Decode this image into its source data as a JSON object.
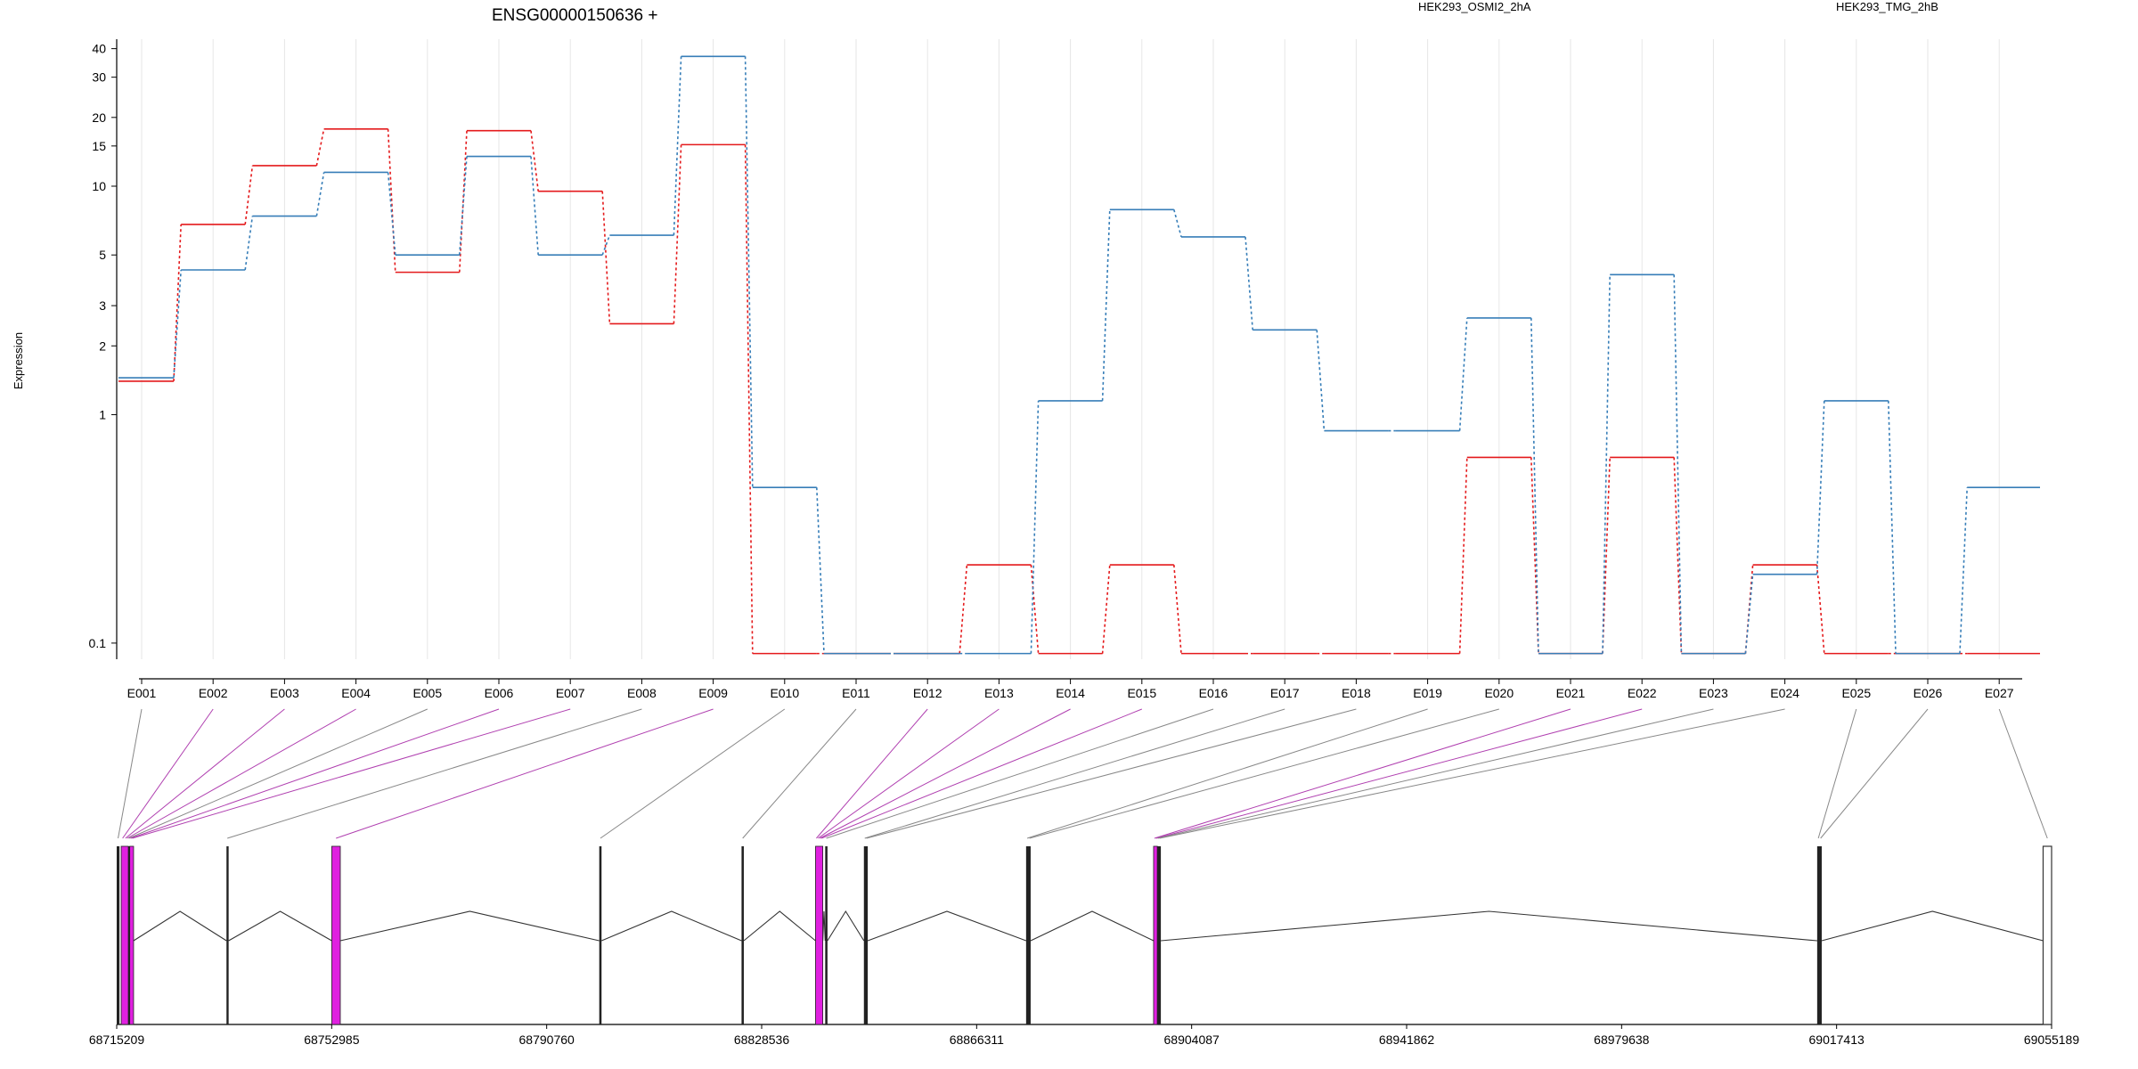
{
  "colors": {
    "series_a": "#e41a1c",
    "series_b": "#377eb8",
    "highlight": "#e020e0",
    "line": "#333333",
    "grid": "#e6e6e6",
    "connector_highlight": "#b040b0",
    "connector_normal": "#888888"
  },
  "chart_data": {
    "type": "line",
    "title": "ENSG00000150636 +",
    "ylabel": "Expression",
    "xlabel": "",
    "y_scale": "log",
    "ylim": [
      0.085,
      44
    ],
    "yticks": [
      0.1,
      1,
      2,
      3,
      5,
      10,
      15,
      20,
      30,
      40
    ],
    "grid": "vertical",
    "legend_position": "top-right",
    "categories": [
      "E001",
      "E002",
      "E003",
      "E004",
      "E005",
      "E006",
      "E007",
      "E008",
      "E009",
      "E010",
      "E011",
      "E012",
      "E013",
      "E014",
      "E015",
      "E016",
      "E017",
      "E018",
      "E019",
      "E020",
      "E021",
      "E022",
      "E023",
      "E024",
      "E025",
      "E026",
      "E027"
    ],
    "series": [
      {
        "name": "HEK293_OSMI2_2hA",
        "color": "#e41a1c",
        "values": [
          1.4,
          6.8,
          12.3,
          17.8,
          4.2,
          17.5,
          9.5,
          2.5,
          15.2,
          0.09,
          0.09,
          0.09,
          0.22,
          0.09,
          0.22,
          0.09,
          0.09,
          0.09,
          0.09,
          0.65,
          0.09,
          0.65,
          0.09,
          0.22,
          0.09,
          0.09,
          0.09
        ]
      },
      {
        "name": "HEK293_TMG_2hB",
        "color": "#377eb8",
        "values": [
          1.45,
          4.3,
          7.4,
          11.5,
          5.0,
          13.5,
          5.0,
          6.1,
          37.0,
          0.48,
          0.09,
          0.09,
          0.09,
          1.15,
          7.9,
          6.0,
          2.35,
          0.85,
          0.85,
          2.65,
          0.09,
          4.1,
          0.09,
          0.2,
          1.15,
          0.09,
          0.48
        ]
      }
    ]
  },
  "gene_model": {
    "coord_labels": [
      "68715209",
      "68752985",
      "68790760",
      "68828536",
      "68866311",
      "68904087",
      "68941862",
      "68979638",
      "69017413",
      "69055189"
    ],
    "range": [
      68715209,
      69055189
    ],
    "exons": [
      {
        "id": "E001",
        "start": 68715209,
        "end": 68715700,
        "highlight": false
      },
      {
        "id": "E002",
        "start": 68716000,
        "end": 68716500,
        "highlight": true
      },
      {
        "id": "E003",
        "start": 68716600,
        "end": 68716900,
        "highlight": true
      },
      {
        "id": "E004",
        "start": 68716900,
        "end": 68717200,
        "highlight": true
      },
      {
        "id": "E005",
        "start": 68717200,
        "end": 68717500,
        "highlight": false
      },
      {
        "id": "E006",
        "start": 68717500,
        "end": 68717800,
        "highlight": true
      },
      {
        "id": "E007",
        "start": 68717800,
        "end": 68718100,
        "highlight": true
      },
      {
        "id": "E008",
        "start": 68734500,
        "end": 68734800,
        "highlight": false
      },
      {
        "id": "E009",
        "start": 68753000,
        "end": 68754500,
        "highlight": true
      },
      {
        "id": "E010",
        "start": 68800000,
        "end": 68800400,
        "highlight": false
      },
      {
        "id": "E011",
        "start": 68825000,
        "end": 68825400,
        "highlight": false
      },
      {
        "id": "E012",
        "start": 68838000,
        "end": 68838300,
        "highlight": true
      },
      {
        "id": "E013",
        "start": 68838300,
        "end": 68838600,
        "highlight": true
      },
      {
        "id": "E014",
        "start": 68838600,
        "end": 68838900,
        "highlight": true
      },
      {
        "id": "E015",
        "start": 68838900,
        "end": 68839200,
        "highlight": true
      },
      {
        "id": "E016",
        "start": 68839700,
        "end": 68840100,
        "highlight": false
      },
      {
        "id": "E017",
        "start": 68846500,
        "end": 68846800,
        "highlight": false
      },
      {
        "id": "E018",
        "start": 68846800,
        "end": 68847100,
        "highlight": false
      },
      {
        "id": "E019",
        "start": 68875000,
        "end": 68875400,
        "highlight": false
      },
      {
        "id": "E020",
        "start": 68875400,
        "end": 68875800,
        "highlight": false
      },
      {
        "id": "E021",
        "start": 68897400,
        "end": 68897700,
        "highlight": true
      },
      {
        "id": "E022",
        "start": 68897700,
        "end": 68898000,
        "highlight": true
      },
      {
        "id": "E023",
        "start": 68898000,
        "end": 68898300,
        "highlight": false
      },
      {
        "id": "E024",
        "start": 68898300,
        "end": 68898600,
        "highlight": false
      },
      {
        "id": "E025",
        "start": 69014000,
        "end": 69014400,
        "highlight": false
      },
      {
        "id": "E026",
        "start": 69014400,
        "end": 69014800,
        "highlight": false
      },
      {
        "id": "E027",
        "start": 69053700,
        "end": 69055189,
        "highlight": false,
        "outline": true
      }
    ]
  }
}
